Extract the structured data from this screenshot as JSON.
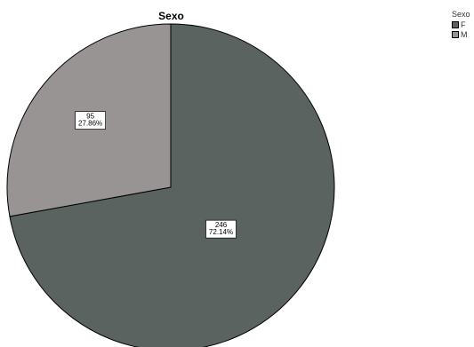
{
  "chart_data": {
    "type": "pie",
    "title": "Sexo",
    "legend": {
      "title": "Sexo",
      "placement": "top-right"
    },
    "slices": [
      {
        "label": "F",
        "value": 246,
        "percent": "72.14%",
        "color": "#5a6360"
      },
      {
        "label": "M",
        "value": 95,
        "percent": "27.86%",
        "color": "#999494"
      }
    ],
    "start_angle_deg": 0,
    "direction": "clockwise"
  }
}
